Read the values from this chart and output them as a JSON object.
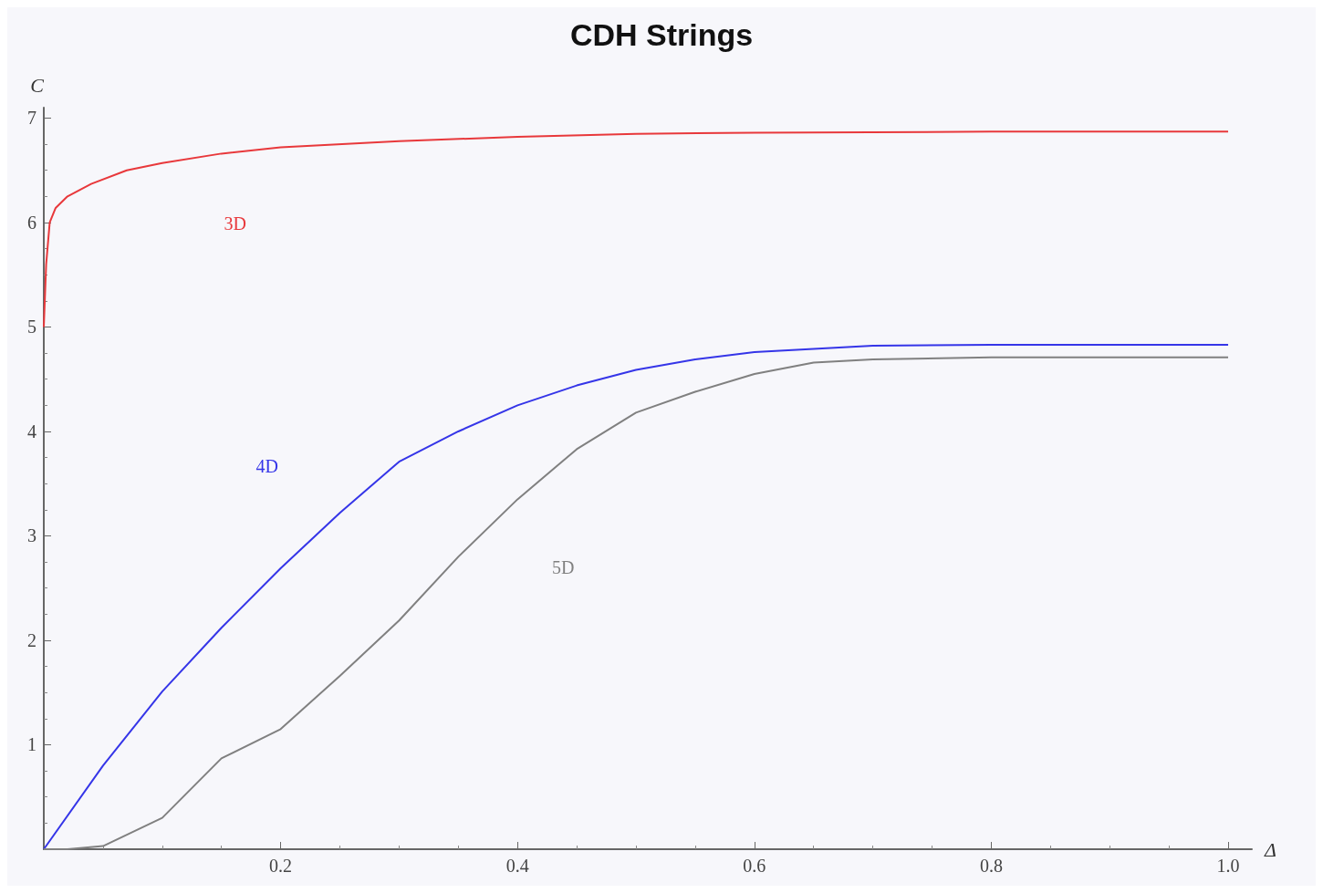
{
  "chart_data": {
    "type": "line",
    "title": "CDH Strings",
    "xlabel": "Δ",
    "ylabel": "C",
    "xlim": [
      0,
      1.02
    ],
    "ylim": [
      0,
      7.1
    ],
    "xticks": [
      0.2,
      0.4,
      0.6,
      0.8,
      {
        "value": 1,
        "label": "1.0"
      }
    ],
    "yticks": [
      1,
      2,
      3,
      4,
      5,
      6,
      7
    ],
    "grid": false,
    "line_style": "solid",
    "series": [
      {
        "name": "3D",
        "color": "#e8383b",
        "x": [
          0,
          0.002,
          0.005,
          0.01,
          0.02,
          0.04,
          0.07,
          0.1,
          0.15,
          0.2,
          0.3,
          0.4,
          0.5,
          0.6,
          0.8,
          1.0
        ],
        "values": [
          5.0,
          5.6,
          6.0,
          6.14,
          6.25,
          6.37,
          6.5,
          6.57,
          6.66,
          6.72,
          6.78,
          6.82,
          6.85,
          6.86,
          6.87,
          6.87
        ]
      },
      {
        "name": "4D",
        "color": "#3535e8",
        "x": [
          0,
          0.05,
          0.1,
          0.15,
          0.2,
          0.25,
          0.3,
          0.35,
          0.4,
          0.45,
          0.5,
          0.55,
          0.6,
          0.7,
          0.8,
          1.0
        ],
        "values": [
          0,
          0.8,
          1.51,
          2.12,
          2.69,
          3.22,
          3.71,
          4.0,
          4.25,
          4.44,
          4.59,
          4.69,
          4.76,
          4.82,
          4.83,
          4.83
        ]
      },
      {
        "name": "5D",
        "color": "#808080",
        "x": [
          0,
          0.02,
          0.05,
          0.1,
          0.15,
          0.2,
          0.25,
          0.3,
          0.35,
          0.4,
          0.45,
          0.5,
          0.55,
          0.6,
          0.65,
          0.7,
          0.8,
          1.0
        ],
        "values": [
          0,
          0,
          0.03,
          0.3,
          0.87,
          1.15,
          1.66,
          2.19,
          2.8,
          3.35,
          3.83,
          4.18,
          4.38,
          4.55,
          4.66,
          4.69,
          4.71,
          4.71
        ]
      }
    ]
  }
}
